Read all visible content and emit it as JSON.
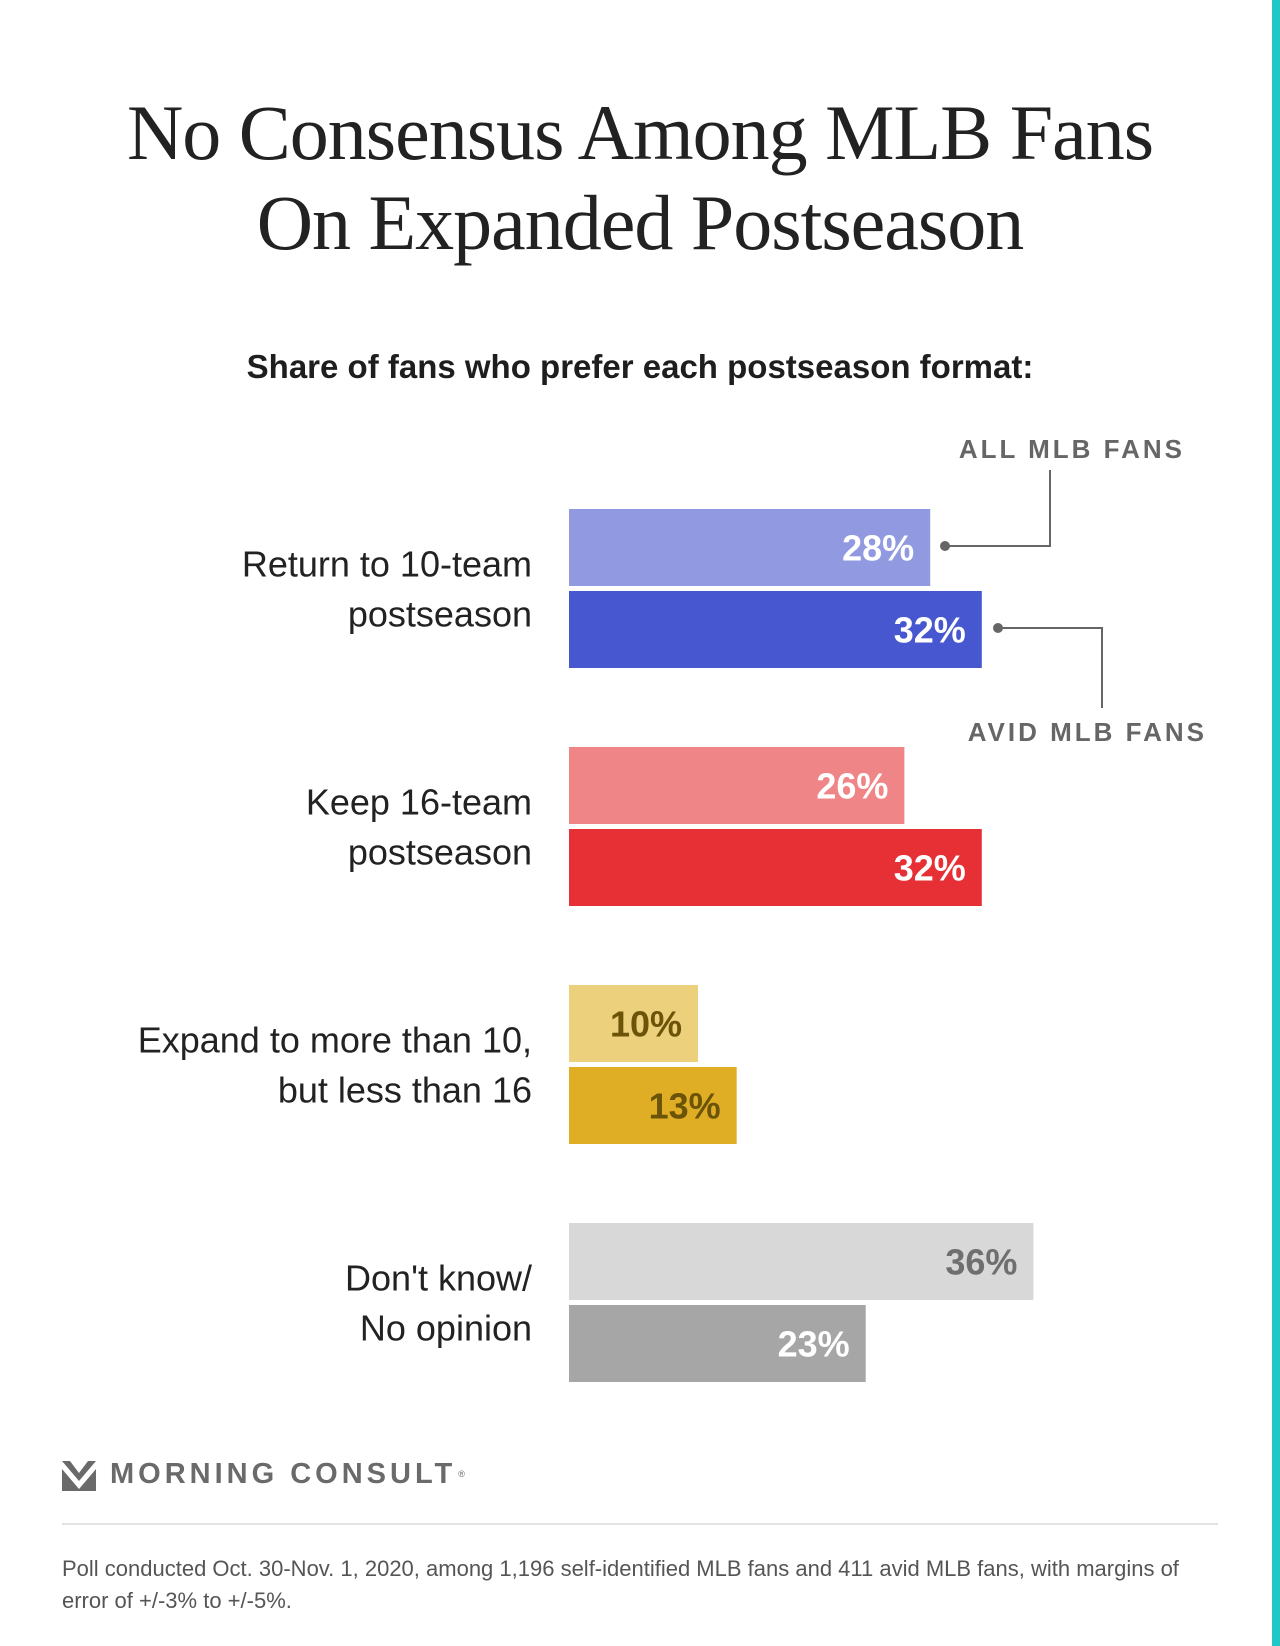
{
  "colors": {
    "accent_edge": "#1fc8c6",
    "leader_line": "#666666",
    "label_text": "#222222"
  },
  "title_lines": [
    "No Consensus Among MLB Fans",
    "On Expanded Postseason"
  ],
  "subtitle": "Share of fans who prefer each postseason format:",
  "legend": {
    "all_fans": "ALL MLB FANS",
    "avid_fans": "AVID MLB FANS"
  },
  "chart_data": {
    "type": "bar",
    "orientation": "horizontal",
    "title": "No Consensus Among MLB Fans On Expanded Postseason",
    "subtitle": "Share of fans who prefer each postseason format:",
    "unit": "%",
    "xlim": [
      0,
      40
    ],
    "grid": false,
    "categories": [
      [
        "Return to 10-team",
        "postseason"
      ],
      [
        "Keep 16-team",
        "postseason"
      ],
      [
        "Expand to more than 10,",
        "but less than 16"
      ],
      [
        "Don't know/",
        "No opinion"
      ]
    ],
    "series": [
      {
        "name": "ALL MLB FANS",
        "values": [
          28,
          26,
          10,
          36
        ],
        "labels": [
          "28%",
          "26%",
          "10%",
          "36%"
        ],
        "colors": [
          "#919ae0",
          "#ef8587",
          "#edd07c",
          "#d8d8d8"
        ],
        "label_colors": [
          "#ffffff",
          "#ffffff",
          "#6b5308",
          "#6f6f6f"
        ]
      },
      {
        "name": "AVID MLB FANS",
        "values": [
          32,
          32,
          13,
          23
        ],
        "labels": [
          "32%",
          "32%",
          "13%",
          "23%"
        ],
        "colors": [
          "#4657cf",
          "#e63035",
          "#e0ae24",
          "#a6a6a6"
        ],
        "label_colors": [
          "#ffffff",
          "#ffffff",
          "#6b5308",
          "#ffffff"
        ]
      }
    ]
  },
  "brand": {
    "name": "MORNING CONSULT",
    "registered": "®",
    "icon": "morning-consult-logo-icon"
  },
  "footnote": "Poll conducted Oct. 30-Nov. 1, 2020, among 1,196 self-identified MLB fans and 411 avid MLB fans, with margins of error of +/-3% to +/-5%."
}
